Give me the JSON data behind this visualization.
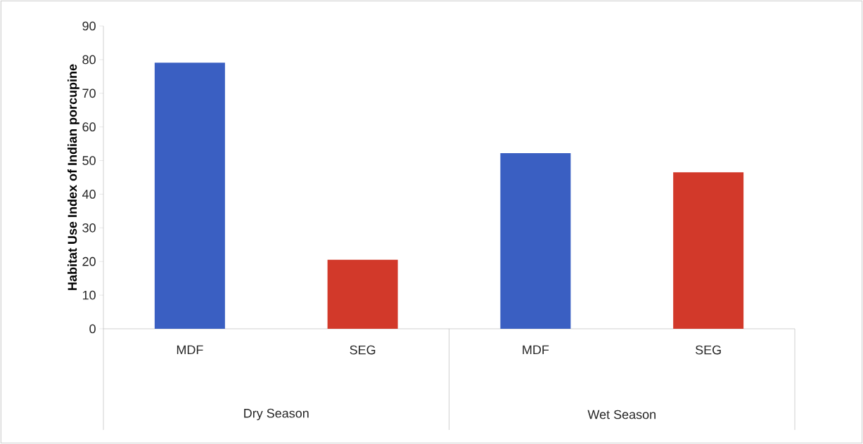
{
  "chart_data": {
    "type": "bar",
    "ylabel": "Habitat Use Index of Indian porcupine",
    "categories": [
      "MDF",
      "SEG",
      "MDF",
      "SEG"
    ],
    "values": [
      79.1,
      20.5,
      52.2,
      46.5
    ],
    "colors": [
      "#3a5fc2",
      "#d2392a",
      "#3a5fc2",
      "#d2392a"
    ],
    "ylim": [
      0,
      90
    ],
    "yticks": [
      0,
      10,
      20,
      30,
      40,
      50,
      60,
      70,
      80,
      90
    ],
    "grid": false,
    "annotations": [
      "Dry Season",
      "Wet Season"
    ]
  }
}
